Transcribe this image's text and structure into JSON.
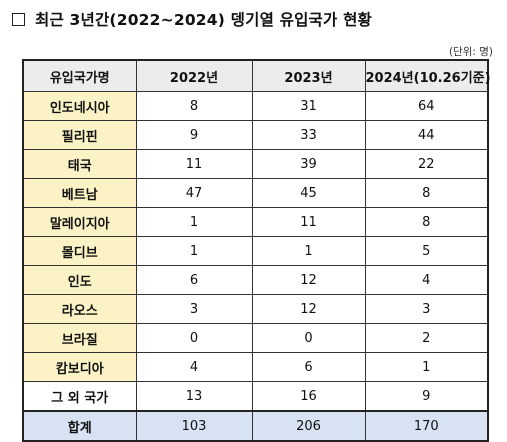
{
  "title": "최근 3년간(2022~2024) 뎅기열 유입국가 현황",
  "unit_note": "(단위: 명)",
  "table": {
    "headers": [
      "유입국가명",
      "2022년",
      "2023년",
      "2024년(10.26기준)"
    ],
    "rows": [
      {
        "country": "인도네시아",
        "y2022": "8",
        "y2023": "31",
        "y2024": "64"
      },
      {
        "country": "필리핀",
        "y2022": "9",
        "y2023": "33",
        "y2024": "44"
      },
      {
        "country": "태국",
        "y2022": "11",
        "y2023": "39",
        "y2024": "22"
      },
      {
        "country": "베트남",
        "y2022": "47",
        "y2023": "45",
        "y2024": "8"
      },
      {
        "country": "말레이지아",
        "y2022": "1",
        "y2023": "11",
        "y2024": "8"
      },
      {
        "country": "몰디브",
        "y2022": "1",
        "y2023": "1",
        "y2024": "5"
      },
      {
        "country": "인도",
        "y2022": "6",
        "y2023": "12",
        "y2024": "4"
      },
      {
        "country": "라오스",
        "y2022": "3",
        "y2023": "12",
        "y2024": "3"
      },
      {
        "country": "브라질",
        "y2022": "0",
        "y2023": "0",
        "y2024": "2"
      },
      {
        "country": "캄보디아",
        "y2022": "4",
        "y2023": "6",
        "y2024": "1"
      },
      {
        "country": "그 외 국가",
        "y2022": "13",
        "y2023": "16",
        "y2024": "9"
      }
    ],
    "total": {
      "label": "합계",
      "y2022": "103",
      "y2023": "206",
      "y2024": "170"
    }
  }
}
